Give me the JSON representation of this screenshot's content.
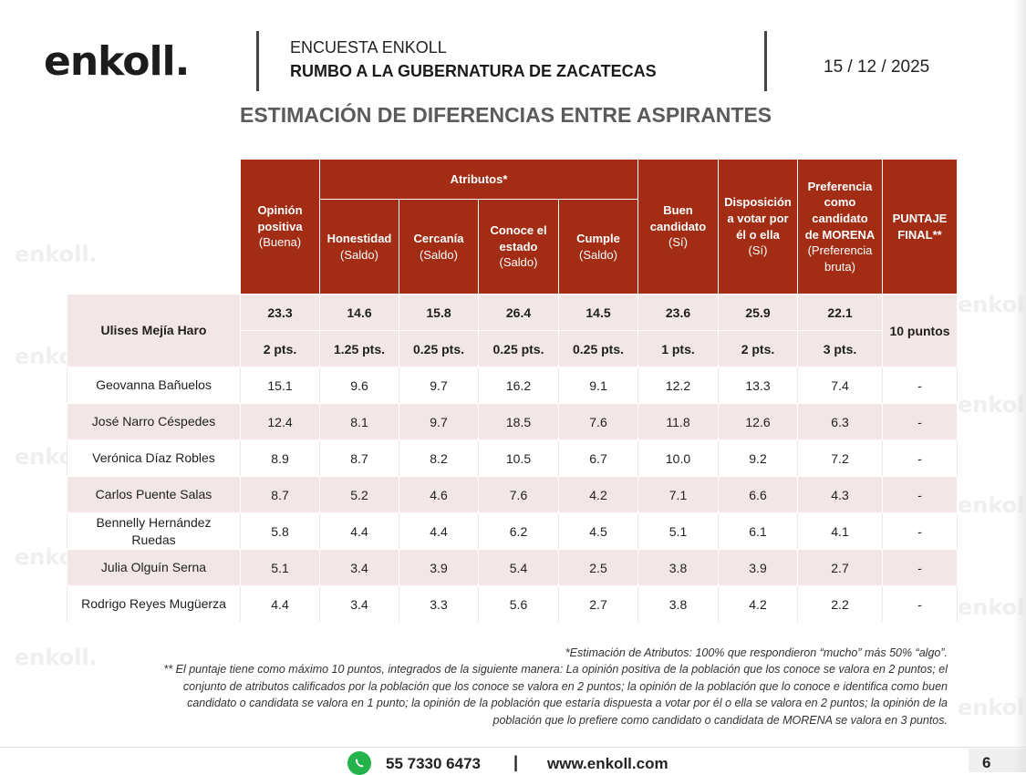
{
  "header": {
    "logo": "enkoll.",
    "line1": "ENCUESTA ENKOLL",
    "line2": "RUMBO A LA GUBERNATURA DE ZACATECAS",
    "date": "15 / 12 / 2025"
  },
  "subtitle": "ESTIMACIÓN DE DIFERENCIAS ENTRE ASPIRANTES",
  "table": {
    "group_header": "Atributos*",
    "columns": {
      "opinion": [
        "Opinión",
        "positiva",
        "(Buena)"
      ],
      "honestidad": [
        "Honestidad",
        "(Saldo)"
      ],
      "cercania": [
        "Cercanía",
        "(Saldo)"
      ],
      "conoce": [
        "Conoce el",
        "estado",
        "(Saldo)"
      ],
      "cumple": [
        "Cumple",
        "(Saldo)"
      ],
      "buen": [
        "Buen",
        "candidato",
        "(Sí)"
      ],
      "disposicion": [
        "Disposición",
        "a votar por",
        "él o ella",
        "(Sí)"
      ],
      "preferencia": [
        "Preferencia",
        "como",
        "candidato",
        "de MORENA",
        "(Preferencia",
        "bruta)"
      ],
      "puntaje": [
        "PUNTAJE",
        "FINAL**"
      ]
    },
    "leader": {
      "name": "Ulises Mejía Haro",
      "values": [
        "23.3",
        "14.6",
        "15.8",
        "26.4",
        "14.5",
        "23.6",
        "25.9",
        "22.1"
      ],
      "points": [
        "2 pts.",
        "1.25 pts.",
        "0.25 pts.",
        "0.25 pts.",
        "0.25 pts.",
        "1 pts.",
        "2 pts.",
        "3 pts."
      ],
      "final": "10 puntos"
    },
    "rows": [
      {
        "name": [
          "Geovanna Bañuelos"
        ],
        "values": [
          "15.1",
          "9.6",
          "9.7",
          "16.2",
          "9.1",
          "12.2",
          "13.3",
          "7.4",
          "-"
        ]
      },
      {
        "name": [
          "José Narro Céspedes"
        ],
        "values": [
          "12.4",
          "8.1",
          "9.7",
          "18.5",
          "7.6",
          "11.8",
          "12.6",
          "6.3",
          "-"
        ]
      },
      {
        "name": [
          "Verónica Díaz Robles"
        ],
        "values": [
          "8.9",
          "8.7",
          "8.2",
          "10.5",
          "6.7",
          "10.0",
          "9.2",
          "7.2",
          "-"
        ]
      },
      {
        "name": [
          "Carlos Puente Salas"
        ],
        "values": [
          "8.7",
          "5.2",
          "4.6",
          "7.6",
          "4.2",
          "7.1",
          "6.6",
          "4.3",
          "-"
        ]
      },
      {
        "name": [
          "Bennelly Hernández",
          "Ruedas"
        ],
        "values": [
          "5.8",
          "4.4",
          "4.4",
          "6.2",
          "4.5",
          "5.1",
          "6.1",
          "4.1",
          "-"
        ]
      },
      {
        "name": [
          "Julia Olguín Serna"
        ],
        "values": [
          "5.1",
          "3.4",
          "3.9",
          "5.4",
          "2.5",
          "3.8",
          "3.9",
          "2.7",
          "-"
        ]
      },
      {
        "name": [
          "Rodrigo Reyes Mugüerza"
        ],
        "values": [
          "4.4",
          "3.4",
          "3.3",
          "5.6",
          "2.7",
          "3.8",
          "4.2",
          "2.2",
          "-"
        ]
      }
    ]
  },
  "notes": {
    "note1": "*Estimación de Atributos: 100% que respondieron “mucho” más 50% “algo”.",
    "note2_lines": [
      "** El puntaje tiene como máximo 10 puntos, integrados de la siguiente manera: La opinión positiva de la población que los conoce se valora en 2 puntos; el",
      "conjunto de atributos calificados por la población que los conoce se valora en 2 puntos; la opinión de la población que lo conoce e identifica como buen",
      "candidato o candidata se valora en 1 punto; la opinión de la población que estaría dispuesta a votar por él o ella se valora en 2 puntos; la opinión de la",
      "población que lo prefiere como candidato o candidata de MORENA se valora en 3 puntos."
    ]
  },
  "footer": {
    "phone": "55 7330 6473",
    "separator": "|",
    "website": "www.enkoll.com",
    "page": "6"
  },
  "colors": {
    "header_red": "#a32d14",
    "row_pink": "#f3e6e6",
    "whatsapp_green": "#24b34a"
  }
}
